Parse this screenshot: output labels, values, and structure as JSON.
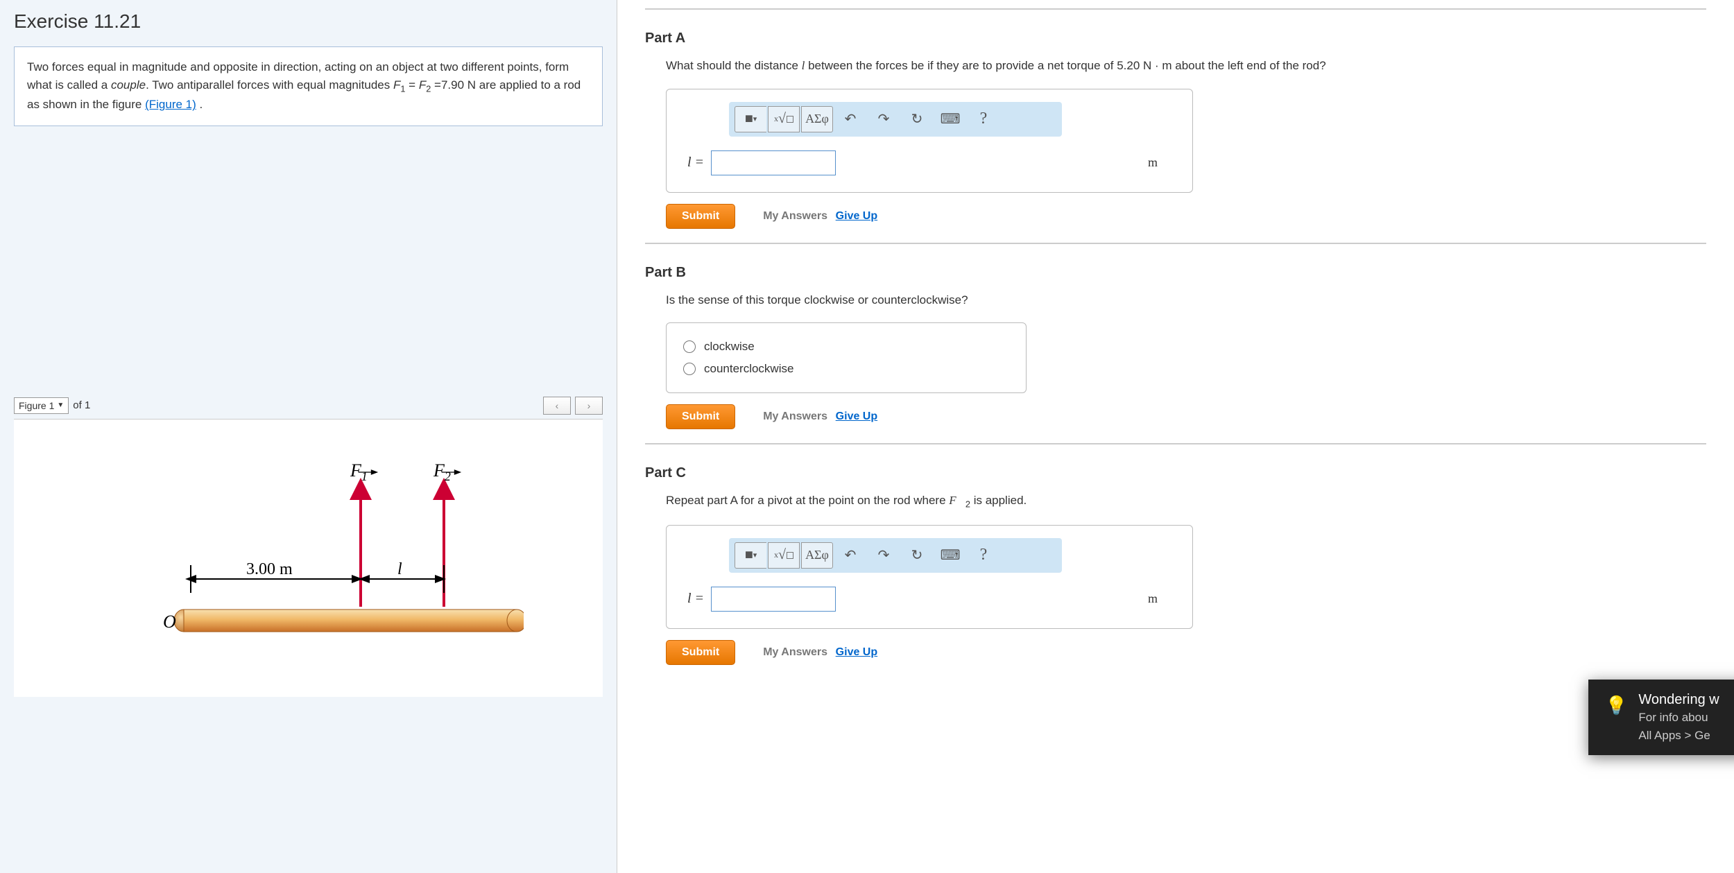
{
  "exercise_title": "Exercise 11.21",
  "problem_html": "Two forces equal in magnitude and opposite in direction, acting on an object at two different points, form what is called a <span class='italic'>couple</span>. Two antiparallel forces with equal magnitudes <span class='italic'>F</span><span class='sub'>1</span> = <span class='italic'>F</span><span class='sub'>2</span> =7.90 N are applied to a rod as shown in the figure ",
  "figure_link": "(Figure 1)",
  "problem_tail": " .",
  "figure": {
    "selector_label": "Figure 1",
    "of_text": "of 1",
    "F1_label": "F₁",
    "F2_label": "F₂",
    "distance_label": "3.00 m",
    "gap_label": "l",
    "origin_label": "O",
    "arrow_color": "#cc0033",
    "rod_gradient_top": "#f8e0b0",
    "rod_gradient_mid": "#e8a050",
    "rod_gradient_bot": "#c87028"
  },
  "partA": {
    "title": "Part A",
    "question": "What should the distance l between the forces be if they are to provide a net torque of 5.20 N · m about the left end of the rod?",
    "var_label": "l =",
    "unit": "m",
    "submit": "Submit",
    "my_answers": "My Answers",
    "give_up": "Give Up",
    "toolbar": {
      "templates": "■",
      "formula": "√□",
      "greek": "ΑΣφ",
      "undo": "↶",
      "redo": "↷",
      "reset": "↻",
      "keyboard": "⌨",
      "help": "?"
    }
  },
  "partB": {
    "title": "Part B",
    "question": "Is the sense of this torque clockwise or counterclockwise?",
    "options": [
      "clockwise",
      "counterclockwise"
    ],
    "submit": "Submit",
    "my_answers": "My Answers",
    "give_up": "Give Up"
  },
  "partC": {
    "title": "Part C",
    "question_html": "Repeat part A for a pivot at the point on the rod where <span style='font-style:italic;font-family:Times New Roman,serif'>F⃗</span><span class='sub'>2</span> is applied.",
    "var_label": "l =",
    "unit": "m",
    "submit": "Submit",
    "my_answers": "My Answers",
    "give_up": "Give Up"
  },
  "tip": {
    "line1": "Wondering w",
    "line2": "For info abou",
    "line3": "All Apps > Ge"
  },
  "colors": {
    "left_bg": "#f0f5fa",
    "toolbar_bg": "#cfe5f5",
    "submit_bg": "#ff8c1a",
    "link": "#0066cc"
  }
}
